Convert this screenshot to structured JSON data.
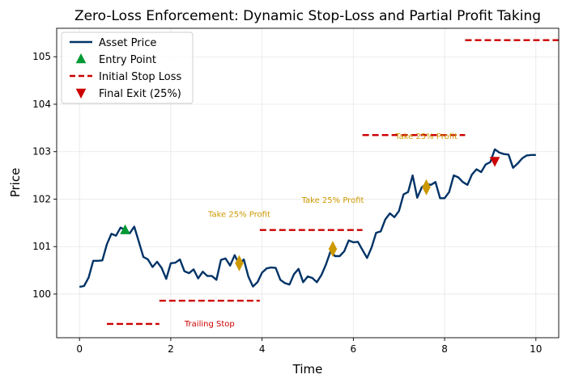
{
  "chart_data": {
    "type": "line",
    "title": "Zero-Loss Enforcement: Dynamic Stop-Loss and Partial Profit Taking",
    "xlabel": "Time",
    "ylabel": "Price",
    "xlim": [
      -0.5,
      10.5
    ],
    "ylim": [
      99.08,
      105.6
    ],
    "x_ticks": [
      0,
      2,
      4,
      6,
      8,
      10
    ],
    "y_ticks": [
      100,
      101,
      102,
      103,
      104,
      105
    ],
    "grid": true,
    "legend_position": "top-left",
    "legend": [
      {
        "label": "Asset Price",
        "kind": "line",
        "color": "#003366"
      },
      {
        "label": "Entry Point",
        "kind": "triangle-up",
        "color": "#009933"
      },
      {
        "label": "Initial Stop Loss",
        "kind": "dashed-line",
        "color": "#cc0000"
      },
      {
        "label": "Final Exit (25%)",
        "kind": "triangle-down",
        "color": "#cc0000"
      }
    ],
    "colors": {
      "price": "#003366",
      "entry": "#009933",
      "stop": "#cc0000",
      "take_profit": "#cc9900",
      "exit": "#cc0000"
    },
    "series": [
      {
        "name": "Asset Price",
        "x": [
          0,
          0.1,
          0.2,
          0.3,
          0.4,
          0.5,
          0.6,
          0.7,
          0.8,
          0.9,
          1.0,
          1.1,
          1.2,
          1.3,
          1.4,
          1.5,
          1.6,
          1.7,
          1.8,
          1.9,
          2.0,
          2.1,
          2.2,
          2.3,
          2.4,
          2.5,
          2.6,
          2.7,
          2.8,
          2.9,
          3.0,
          3.1,
          3.2,
          3.3,
          3.4,
          3.5,
          3.6,
          3.7,
          3.8,
          3.9,
          4.0,
          4.1,
          4.2,
          4.3,
          4.4,
          4.5,
          4.6,
          4.7,
          4.8,
          4.9,
          5.0,
          5.1,
          5.2,
          5.3,
          5.4,
          5.5,
          5.6,
          5.7,
          5.8,
          5.9,
          6.0,
          6.1,
          6.2,
          6.3,
          6.4,
          6.5,
          6.6,
          6.7,
          6.8,
          6.9,
          7.0,
          7.1,
          7.2,
          7.3,
          7.4,
          7.5,
          7.6,
          7.7,
          7.8,
          7.9,
          8.0,
          8.1,
          8.2,
          8.3,
          8.4,
          8.5,
          8.6,
          8.7,
          8.8,
          8.9,
          9.0,
          9.1,
          9.2,
          9.3,
          9.4,
          9.5,
          9.6,
          9.7,
          9.8,
          9.9,
          10.0
        ],
        "values": [
          100.15,
          100.17,
          100.35,
          100.7,
          100.7,
          100.71,
          101.05,
          101.27,
          101.23,
          101.4,
          101.35,
          101.28,
          101.42,
          101.1,
          100.78,
          100.73,
          100.57,
          100.68,
          100.55,
          100.32,
          100.65,
          100.66,
          100.73,
          100.48,
          100.44,
          100.52,
          100.33,
          100.47,
          100.38,
          100.38,
          100.3,
          100.72,
          100.75,
          100.6,
          100.82,
          100.62,
          100.73,
          100.37,
          100.16,
          100.25,
          100.45,
          100.54,
          100.56,
          100.55,
          100.3,
          100.23,
          100.2,
          100.42,
          100.53,
          100.25,
          100.37,
          100.34,
          100.25,
          100.4,
          100.62,
          100.9,
          100.8,
          100.8,
          100.9,
          101.13,
          101.09,
          101.1,
          100.93,
          100.76,
          100.98,
          101.29,
          101.32,
          101.57,
          101.7,
          101.62,
          101.75,
          102.1,
          102.15,
          102.5,
          102.03,
          102.25,
          102.32,
          102.3,
          102.36,
          102.02,
          102.02,
          102.15,
          102.5,
          102.46,
          102.36,
          102.3,
          102.52,
          102.63,
          102.57,
          102.73,
          102.78,
          103.05,
          102.98,
          102.95,
          102.94,
          102.66,
          102.75,
          102.86,
          102.92,
          102.93,
          102.93
        ]
      }
    ],
    "entry_points": [
      {
        "x": 1.0,
        "y": 101.35
      }
    ],
    "take_profit_markers": [
      {
        "x": 3.5,
        "y": 100.65
      },
      {
        "x": 5.55,
        "y": 100.95
      },
      {
        "x": 7.6,
        "y": 102.25
      }
    ],
    "final_exit": {
      "x": 9.1,
      "y": 102.8
    },
    "stop_levels": [
      {
        "x1": 0.6,
        "x2": 1.75,
        "y": 99.37
      },
      {
        "x1": 1.75,
        "x2": 3.95,
        "y": 99.86
      },
      {
        "x1": 3.95,
        "x2": 6.2,
        "y": 101.35
      },
      {
        "x1": 6.2,
        "x2": 8.45,
        "y": 103.35
      },
      {
        "x1": 8.45,
        "x2": 10.5,
        "y": 105.35
      }
    ],
    "annotations": [
      {
        "text": "Trailing Stop",
        "x": 2.85,
        "y": 99.37,
        "color": "#cc0000"
      },
      {
        "text": "Take 25% Profit",
        "x": 3.5,
        "y": 101.68,
        "color": "#cc9900"
      },
      {
        "text": "Take 25% Profit",
        "x": 5.55,
        "y": 101.97,
        "color": "#cc9900"
      },
      {
        "text": "Take 25% Profit",
        "x": 7.6,
        "y": 103.32,
        "color": "#cc9900"
      }
    ]
  }
}
